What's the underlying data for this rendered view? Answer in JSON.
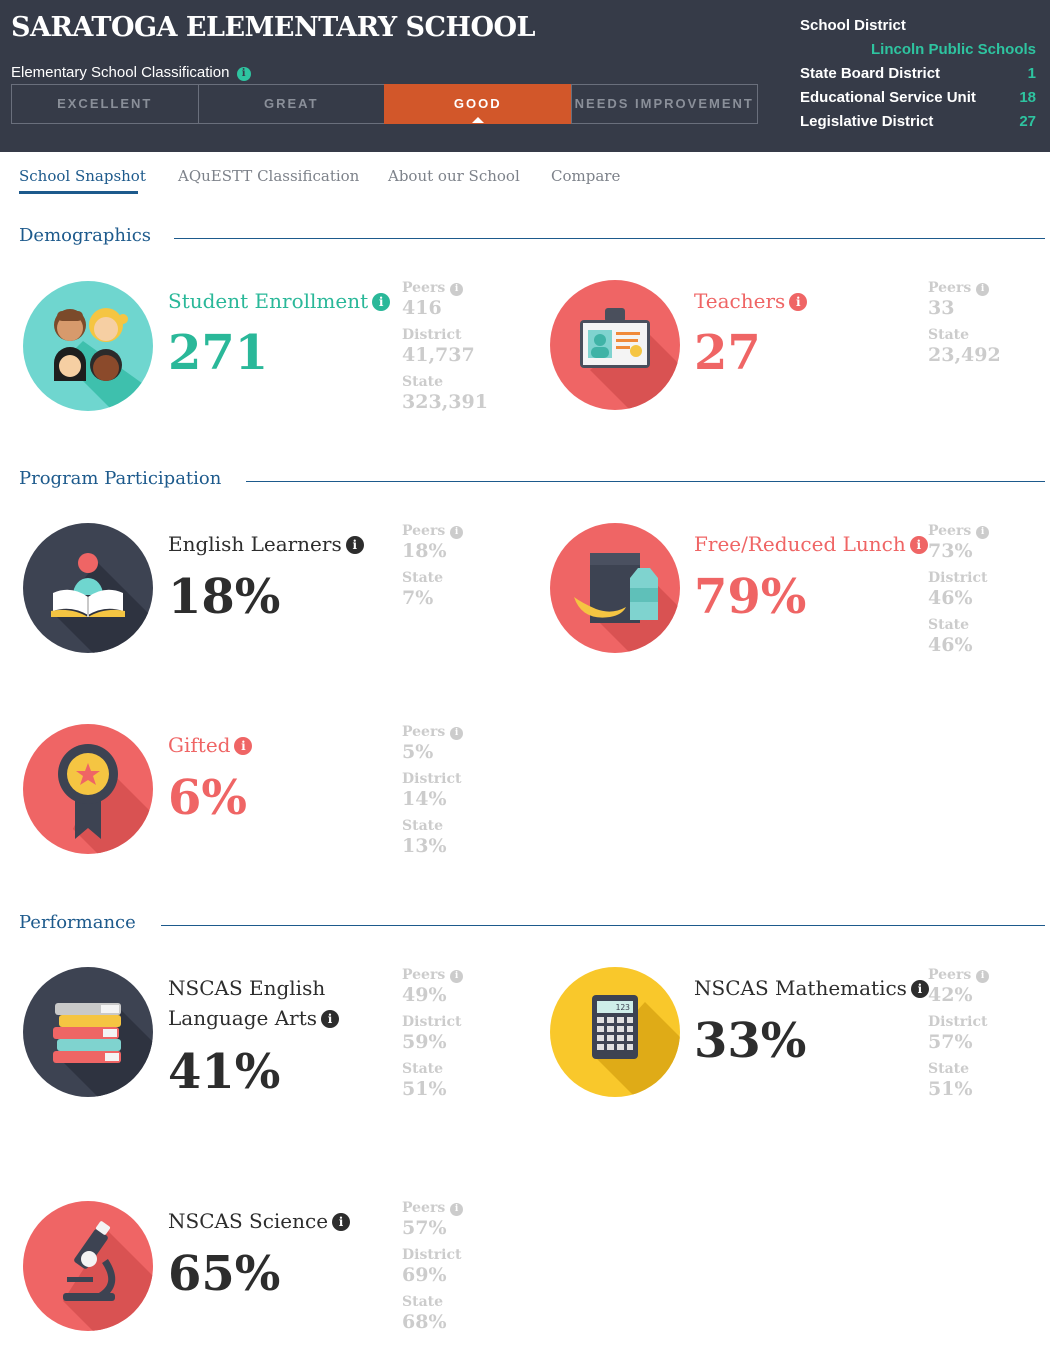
{
  "header": {
    "school_name": "SARATOGA ELEMENTARY SCHOOL",
    "classification_label": "Elementary School Classification",
    "classification_tabs": [
      "EXCELLENT",
      "GREAT",
      "GOOD",
      "NEEDS IMPROVEMENT"
    ],
    "active_classification": "GOOD",
    "school_district_label": "School District",
    "school_district": "Lincoln Public Schools",
    "state_board_district_label": "State Board District",
    "state_board_district": "1",
    "esu_label": "Educational Service Unit",
    "esu": "18",
    "legislative_district_label": "Legislative District",
    "legislative_district": "27",
    "accent_color": "#d2572a",
    "highlight_color": "#2ec4a0"
  },
  "nav": {
    "tabs": [
      "School Snapshot",
      "AQuESTT Classification",
      "About our School",
      "Compare"
    ],
    "active": "School Snapshot"
  },
  "labels": {
    "peers": "Peers",
    "district": "District",
    "state": "State",
    "info": "i"
  },
  "sections": {
    "demographics": "Demographics",
    "program": "Program Participation",
    "performance": "Performance"
  },
  "metrics": {
    "enrollment": {
      "label": "Student Enrollment",
      "value": "271",
      "peers": "416",
      "district": "41,737",
      "state": "323,391",
      "icon": "students-icon"
    },
    "teachers": {
      "label": "Teachers",
      "value": "27",
      "peers": "33",
      "state": "23,492",
      "icon": "id-badge-icon"
    },
    "english_learners": {
      "label": "English Learners",
      "value": "18%",
      "peers": "18%",
      "state": "7%",
      "icon": "reader-icon"
    },
    "lunch": {
      "label": "Free/Reduced Lunch",
      "value": "79%",
      "peers": "73%",
      "district": "46%",
      "state": "46%",
      "icon": "lunch-bag-icon"
    },
    "gifted": {
      "label": "Gifted",
      "value": "6%",
      "peers": "5%",
      "district": "14%",
      "state": "13%",
      "icon": "award-ribbon-icon"
    },
    "ela": {
      "label_line1": "NSCAS English",
      "label_line2": "Language Arts",
      "value": "41%",
      "peers": "49%",
      "district": "59%",
      "state": "51%",
      "icon": "books-icon"
    },
    "math": {
      "label": "NSCAS Mathematics",
      "value": "33%",
      "peers": "42%",
      "district": "57%",
      "state": "51%",
      "icon": "calculator-icon"
    },
    "science": {
      "label": "NSCAS Science",
      "value": "65%",
      "peers": "57%",
      "district": "69%",
      "state": "68%",
      "icon": "microscope-icon"
    }
  },
  "calculator_display": "123"
}
